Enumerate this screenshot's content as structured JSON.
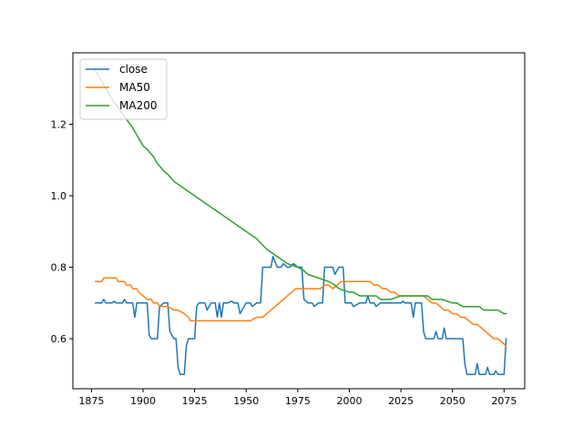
{
  "chart_data": {
    "type": "line",
    "title": "",
    "xlabel": "",
    "ylabel": "",
    "xlim": [
      1866,
      2085
    ],
    "ylim": [
      0.46,
      1.4
    ],
    "xticks": [
      1875,
      1900,
      1925,
      1950,
      1975,
      2000,
      2025,
      2050,
      2075
    ],
    "yticks": [
      0.6,
      0.8,
      1.0,
      1.2
    ],
    "xtick_labels": [
      "1875",
      "1900",
      "1925",
      "1950",
      "1975",
      "2000",
      "2025",
      "2050",
      "2075"
    ],
    "ytick_labels": [
      "0.6",
      "0.8",
      "1.0",
      "1.2"
    ],
    "grid": false,
    "legend_position": "top-left",
    "series": [
      {
        "name": "close",
        "color": "#1f77b4",
        "x": [
          1877,
          1880,
          1881,
          1882,
          1885,
          1886,
          1887,
          1890,
          1891,
          1892,
          1895,
          1896,
          1897,
          1898,
          1899,
          1902,
          1903,
          1904,
          1907,
          1908,
          1910,
          1911,
          1912,
          1913,
          1915,
          1916,
          1917,
          1918,
          1920,
          1921,
          1922,
          1925,
          1926,
          1927,
          1929,
          1930,
          1931,
          1933,
          1934,
          1935,
          1936,
          1937,
          1938,
          1939,
          1941,
          1943,
          1944,
          1945,
          1946,
          1947,
          1950,
          1951,
          1952,
          1953,
          1955,
          1956,
          1957,
          1958,
          1960,
          1961,
          1962,
          1963,
          1965,
          1966,
          1967,
          1968,
          1970,
          1971,
          1973,
          1975,
          1976,
          1977,
          1978,
          1980,
          1981,
          1982,
          1983,
          1985,
          1986,
          1987,
          1988,
          1990,
          1991,
          1992,
          1993,
          1995,
          1996,
          1997,
          1998,
          2000,
          2001,
          2002,
          2005,
          2006,
          2007,
          2008,
          2009,
          2010,
          2011,
          2012,
          2013,
          2015,
          2016,
          2020,
          2025,
          2026,
          2027,
          2030,
          2031,
          2032,
          2034,
          2035,
          2036,
          2037,
          2040,
          2041,
          2042,
          2043,
          2045,
          2046,
          2047,
          2050,
          2051,
          2055,
          2056,
          2057,
          2060,
          2061,
          2062,
          2063,
          2065,
          2066,
          2067,
          2068,
          2070,
          2071,
          2072,
          2075,
          2076
        ],
        "values": [
          0.7,
          0.7,
          0.71,
          0.7,
          0.7,
          0.705,
          0.7,
          0.7,
          0.71,
          0.7,
          0.7,
          0.66,
          0.7,
          0.7,
          0.7,
          0.7,
          0.61,
          0.6,
          0.6,
          0.69,
          0.7,
          0.7,
          0.7,
          0.62,
          0.6,
          0.6,
          0.52,
          0.5,
          0.5,
          0.58,
          0.6,
          0.6,
          0.69,
          0.7,
          0.7,
          0.7,
          0.68,
          0.7,
          0.7,
          0.7,
          0.66,
          0.7,
          0.66,
          0.7,
          0.7,
          0.705,
          0.7,
          0.7,
          0.7,
          0.67,
          0.7,
          0.7,
          0.7,
          0.69,
          0.7,
          0.7,
          0.7,
          0.8,
          0.8,
          0.8,
          0.8,
          0.83,
          0.8,
          0.8,
          0.8,
          0.81,
          0.8,
          0.8,
          0.81,
          0.8,
          0.8,
          0.8,
          0.71,
          0.7,
          0.7,
          0.7,
          0.69,
          0.7,
          0.7,
          0.7,
          0.8,
          0.8,
          0.8,
          0.8,
          0.78,
          0.8,
          0.8,
          0.8,
          0.7,
          0.7,
          0.7,
          0.69,
          0.7,
          0.7,
          0.7,
          0.7,
          0.72,
          0.7,
          0.7,
          0.7,
          0.69,
          0.7,
          0.7,
          0.7,
          0.7,
          0.705,
          0.7,
          0.7,
          0.66,
          0.7,
          0.7,
          0.7,
          0.62,
          0.6,
          0.6,
          0.6,
          0.62,
          0.6,
          0.6,
          0.63,
          0.6,
          0.6,
          0.6,
          0.6,
          0.53,
          0.5,
          0.5,
          0.5,
          0.53,
          0.5,
          0.5,
          0.5,
          0.52,
          0.5,
          0.5,
          0.51,
          0.5,
          0.5,
          0.6
        ]
      },
      {
        "name": "MA50",
        "color": "#ff7f0e",
        "x": [
          1877,
          1880,
          1881,
          1887,
          1888,
          1891,
          1892,
          1894,
          1895,
          1897,
          1898,
          1900,
          1902,
          1904,
          1905,
          1907,
          1908,
          1912,
          1915,
          1917,
          1920,
          1922,
          1923,
          1950,
          1952,
          1955,
          1957,
          1958,
          1960,
          1962,
          1964,
          1966,
          1968,
          1970,
          1972,
          1974,
          1976,
          1978,
          1986,
          1988,
          1990,
          1992,
          1994,
          1996,
          2010,
          2012,
          2014,
          2016,
          2018,
          2020,
          2022,
          2024,
          2026,
          2036,
          2038,
          2040,
          2042,
          2044,
          2046,
          2048,
          2050,
          2052,
          2054,
          2056,
          2058,
          2060,
          2062,
          2064,
          2066,
          2068,
          2070,
          2072,
          2074,
          2076
        ],
        "values": [
          0.76,
          0.76,
          0.77,
          0.77,
          0.76,
          0.76,
          0.75,
          0.75,
          0.74,
          0.74,
          0.73,
          0.72,
          0.71,
          0.71,
          0.7,
          0.7,
          0.69,
          0.69,
          0.68,
          0.68,
          0.67,
          0.66,
          0.65,
          0.65,
          0.65,
          0.66,
          0.66,
          0.66,
          0.67,
          0.68,
          0.69,
          0.7,
          0.71,
          0.72,
          0.73,
          0.74,
          0.74,
          0.74,
          0.74,
          0.75,
          0.75,
          0.74,
          0.75,
          0.76,
          0.76,
          0.75,
          0.75,
          0.74,
          0.74,
          0.73,
          0.73,
          0.72,
          0.72,
          0.72,
          0.71,
          0.7,
          0.7,
          0.69,
          0.68,
          0.68,
          0.67,
          0.67,
          0.66,
          0.66,
          0.65,
          0.64,
          0.64,
          0.63,
          0.62,
          0.61,
          0.6,
          0.6,
          0.59,
          0.58
        ]
      },
      {
        "name": "MA200",
        "color": "#2ca02c",
        "x": [
          1877,
          1880,
          1885,
          1890,
          1895,
          1897,
          1900,
          1902,
          1905,
          1907,
          1910,
          1912,
          1915,
          1920,
          1925,
          1930,
          1935,
          1940,
          1945,
          1950,
          1955,
          1960,
          1965,
          1970,
          1975,
          1978,
          1980,
          1985,
          1990,
          1993,
          1995,
          2000,
          2002,
          2005,
          2010,
          2013,
          2015,
          2020,
          2025,
          2030,
          2035,
          2038,
          2040,
          2045,
          2050,
          2052,
          2055,
          2060,
          2063,
          2065,
          2070,
          2072,
          2075,
          2076
        ],
        "values": [
          1.35,
          1.32,
          1.27,
          1.23,
          1.19,
          1.17,
          1.14,
          1.13,
          1.11,
          1.09,
          1.07,
          1.06,
          1.04,
          1.02,
          1.0,
          0.98,
          0.96,
          0.94,
          0.92,
          0.9,
          0.88,
          0.85,
          0.83,
          0.81,
          0.8,
          0.79,
          0.78,
          0.77,
          0.76,
          0.75,
          0.74,
          0.73,
          0.73,
          0.72,
          0.72,
          0.72,
          0.71,
          0.71,
          0.72,
          0.72,
          0.72,
          0.72,
          0.71,
          0.71,
          0.7,
          0.7,
          0.69,
          0.69,
          0.69,
          0.68,
          0.68,
          0.68,
          0.67,
          0.67
        ]
      }
    ]
  }
}
